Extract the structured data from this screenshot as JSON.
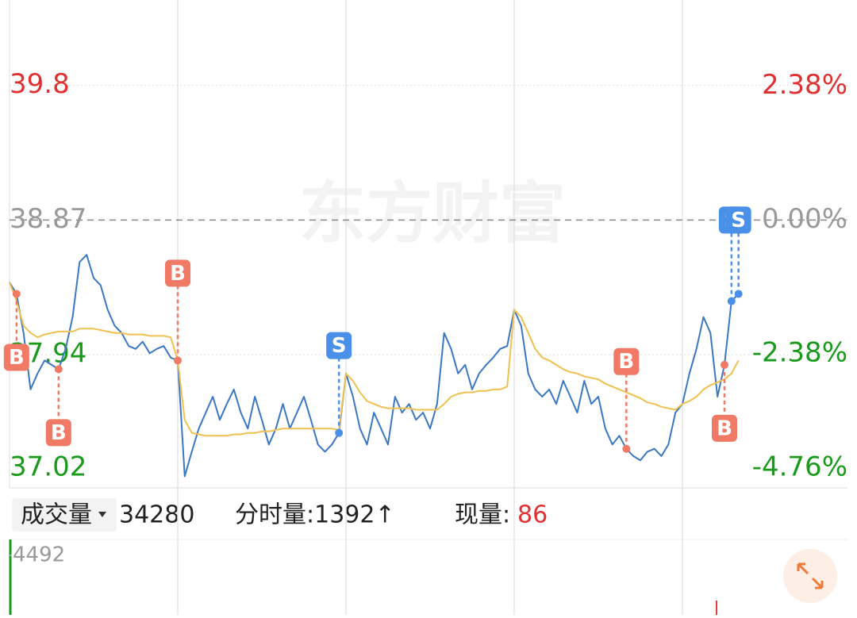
{
  "chart_data": {
    "type": "line",
    "watermark": "东方财富",
    "categories": [
      null,
      null,
      null,
      null,
      null,
      null,
      null,
      null,
      null,
      null,
      null,
      null,
      null,
      null,
      null,
      null,
      null,
      null,
      null,
      null,
      null,
      null,
      null,
      null,
      null,
      null,
      null,
      null,
      null,
      null,
      null,
      null,
      null,
      null,
      null,
      null,
      null,
      null,
      null,
      null,
      null,
      null,
      null,
      null,
      null,
      null,
      null,
      null,
      null,
      null,
      null,
      null,
      null,
      null,
      null,
      null,
      null,
      null,
      null,
      null,
      null,
      null,
      null,
      null,
      null,
      null,
      null,
      null,
      null,
      null,
      null,
      null,
      null,
      null,
      null,
      null,
      null,
      null,
      null,
      null,
      null,
      null,
      null,
      null,
      null,
      null,
      null,
      null,
      null,
      null,
      null,
      null,
      null,
      null,
      null,
      null,
      null,
      null,
      null,
      null,
      null,
      null,
      null,
      null,
      null,
      null,
      null,
      null,
      null,
      null,
      null,
      null,
      null,
      null,
      null,
      null,
      null,
      null,
      null,
      null
    ],
    "series": [
      {
        "color": "#3a78c4",
        "values": [
          38.44,
          38.36,
          38.09,
          37.7,
          37.81,
          37.9,
          37.87,
          37.84,
          37.98,
          38.2,
          38.58,
          38.63,
          38.47,
          38.42,
          38.25,
          38.14,
          38.09,
          38.0,
          37.98,
          38.03,
          37.95,
          37.98,
          38.0,
          37.92,
          37.9,
          37.1,
          37.27,
          37.43,
          37.54,
          37.65,
          37.49,
          37.6,
          37.7,
          37.54,
          37.43,
          37.65,
          37.49,
          37.32,
          37.43,
          37.6,
          37.43,
          37.54,
          37.65,
          37.49,
          37.32,
          37.27,
          37.32,
          37.4,
          37.81,
          37.65,
          37.43,
          37.32,
          37.54,
          37.43,
          37.32,
          37.65,
          37.54,
          37.6,
          37.49,
          37.54,
          37.43,
          37.6,
          38.09,
          37.98,
          37.81,
          37.87,
          37.7,
          37.81,
          37.87,
          37.92,
          37.98,
          38.0,
          38.25,
          38.14,
          37.81,
          37.7,
          37.65,
          37.7,
          37.6,
          37.76,
          37.65,
          37.54,
          37.76,
          37.6,
          37.65,
          37.43,
          37.32,
          37.38,
          37.29,
          37.24,
          37.21,
          37.27,
          37.29,
          37.24,
          37.32,
          37.54,
          37.6,
          37.81,
          37.98,
          38.2,
          38.09,
          37.65,
          37.87,
          38.31,
          38.36,
          null,
          null,
          null,
          null,
          null,
          null,
          null,
          null,
          null,
          null,
          null,
          null,
          null,
          null,
          null
        ]
      },
      {
        "color": "#f0c050",
        "values": [
          38.44,
          38.31,
          38.14,
          38.09,
          38.06,
          38.08,
          38.09,
          38.1,
          38.1,
          38.1,
          38.12,
          38.12,
          38.12,
          38.11,
          38.1,
          38.09,
          38.09,
          38.08,
          38.08,
          38.08,
          38.07,
          38.07,
          38.07,
          38.06,
          37.9,
          37.49,
          37.4,
          37.39,
          37.38,
          37.38,
          37.38,
          37.38,
          37.39,
          37.39,
          37.4,
          37.4,
          37.41,
          37.41,
          37.42,
          37.43,
          37.43,
          37.43,
          37.43,
          37.43,
          37.43,
          37.43,
          37.43,
          37.42,
          37.81,
          37.76,
          37.68,
          37.62,
          37.6,
          37.58,
          37.57,
          37.57,
          37.57,
          37.57,
          37.56,
          37.56,
          37.56,
          37.56,
          37.6,
          37.65,
          37.67,
          37.68,
          37.68,
          37.69,
          37.69,
          37.7,
          37.7,
          37.72,
          38.25,
          38.2,
          38.09,
          37.98,
          37.92,
          37.9,
          37.87,
          37.84,
          37.82,
          37.81,
          37.79,
          37.78,
          37.77,
          37.74,
          37.72,
          37.7,
          37.68,
          37.66,
          37.64,
          37.61,
          37.6,
          37.58,
          37.57,
          37.56,
          37.6,
          37.62,
          37.65,
          37.7,
          37.73,
          37.75,
          37.77,
          37.81,
          37.9,
          null,
          null,
          null,
          null,
          null,
          null,
          null,
          null,
          null,
          null,
          null,
          null,
          null,
          null,
          null
        ]
      }
    ],
    "ylim": [
      37.02,
      40.39
    ],
    "yticks": [
      39.8,
      38.87,
      37.94,
      37.02
    ],
    "y2lim": [
      -4.76,
      3.91
    ],
    "y2ticks": [
      {
        "value": 2.38,
        "label": "2.38%"
      },
      {
        "value": 0.0,
        "label": "0.00%"
      },
      {
        "value": -2.38,
        "label": "-2.38%"
      },
      {
        "value": -4.76,
        "label": "-4.76%"
      }
    ],
    "signals": [
      {
        "label": "B",
        "index": 1,
        "position": "below",
        "color": "#f07a66"
      },
      {
        "label": "B",
        "index": 7,
        "position": "below",
        "color": "#f07a66"
      },
      {
        "label": "B",
        "index": 24,
        "position": "above",
        "color": "#f07a66"
      },
      {
        "label": "S",
        "index": 47,
        "position": "above",
        "color": "#4a90e8"
      },
      {
        "label": "B",
        "index": 88,
        "position": "above",
        "color": "#f07a66"
      },
      {
        "label": "B",
        "index": 102,
        "position": "below",
        "color": "#f07a66"
      },
      {
        "label": "S",
        "index": 103,
        "position": "top",
        "color": "#4a90e8"
      },
      {
        "label": "S",
        "index": 104,
        "position": "top",
        "color": "#4a90e8"
      }
    ],
    "volume_bar": {
      "selector": "成交量",
      "total": "34280",
      "period": "分时量:1392↑",
      "now_label": "现量:",
      "now_value": "86"
    },
    "volume": {
      "ylim": [
        0,
        4492
      ],
      "yticks": [
        4492
      ]
    }
  }
}
